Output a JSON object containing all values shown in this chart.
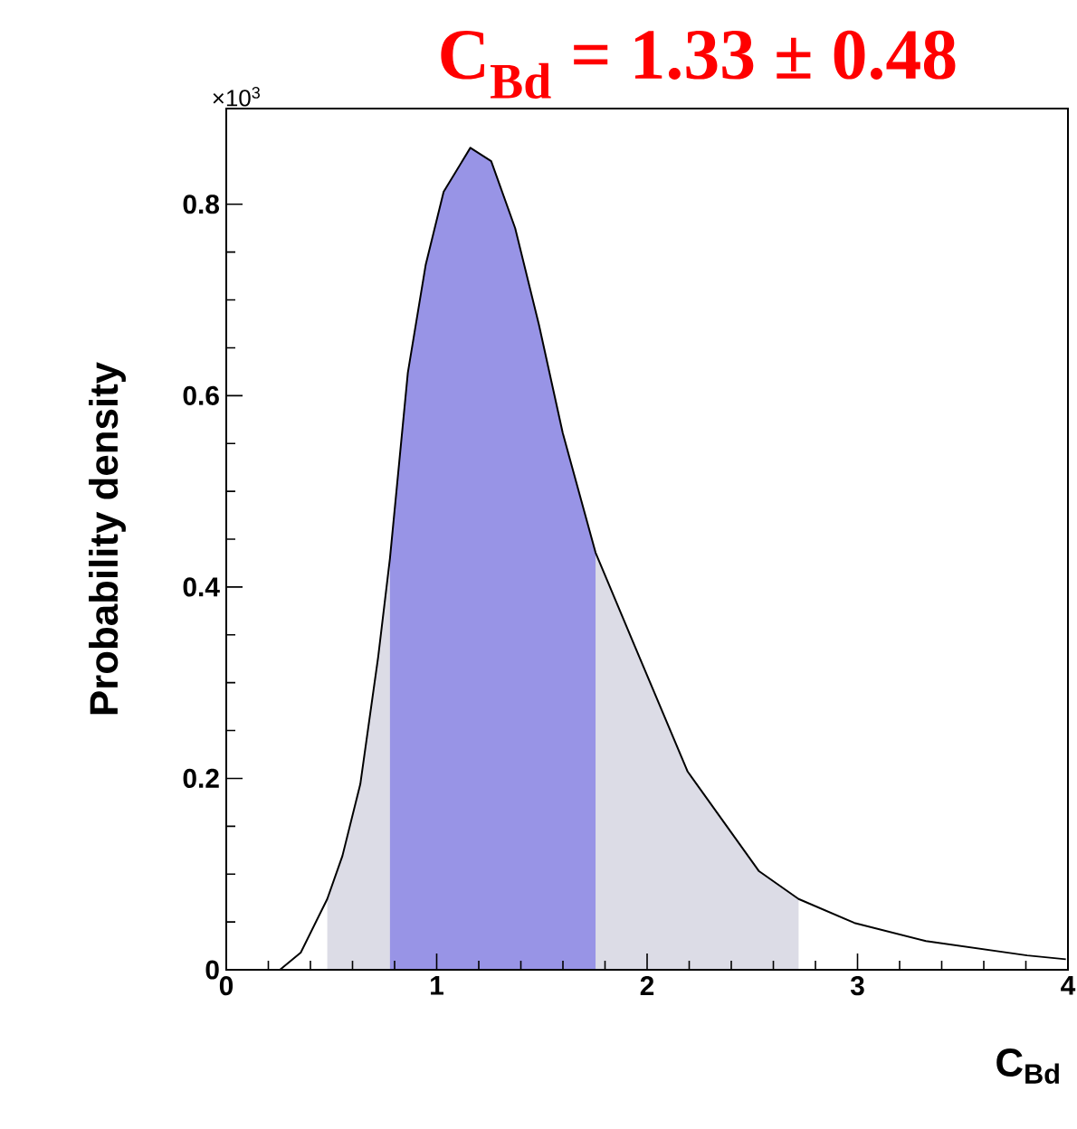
{
  "chart_data": {
    "type": "area",
    "title": "C$_{Bd}$ = 1.33 ± 0.48",
    "xlabel": "C$_{Bd}$",
    "ylabel": "Probability density",
    "annotations": [
      "×10$^{3}$"
    ],
    "xlim": [
      0,
      4
    ],
    "ylim": [
      0,
      0.9
    ],
    "xticks": [
      0,
      1,
      2,
      3,
      4
    ],
    "yticks": [
      0,
      0.2,
      0.4,
      0.6,
      0.8
    ],
    "series": [
      {
        "color": "#dcdce6",
        "x": [
          0.48,
          0.552,
          0.637,
          0.722,
          0.778,
          0.863,
          0.948,
          1.033,
          1.16,
          1.259,
          1.373,
          1.486,
          1.599,
          1.755,
          1.938,
          2.193,
          2.532,
          2.72
        ],
        "values": [
          0.074,
          0.119,
          0.194,
          0.327,
          0.43,
          0.624,
          0.737,
          0.813,
          0.859,
          0.845,
          0.775,
          0.674,
          0.561,
          0.436,
          0.34,
          0.207,
          0.103,
          0.074
        ]
      },
      {
        "color": "#9894e6",
        "x": [
          0.778,
          0.863,
          0.948,
          1.033,
          1.16,
          1.259,
          1.373,
          1.486,
          1.599,
          1.755
        ],
        "values": [
          0.43,
          0.624,
          0.737,
          0.813,
          0.859,
          0.845,
          0.775,
          0.674,
          0.561,
          0.436
        ]
      },
      {
        "type": "line",
        "color": "#000000",
        "x": [
          0.255,
          0.354,
          0.48,
          0.552,
          0.637,
          0.722,
          0.778,
          0.863,
          0.948,
          1.033,
          1.16,
          1.259,
          1.373,
          1.486,
          1.599,
          1.755,
          1.938,
          2.193,
          2.532,
          2.72,
          2.985,
          3.325,
          3.806,
          3.99
        ],
        "values": [
          0,
          0.018,
          0.074,
          0.119,
          0.194,
          0.327,
          0.43,
          0.624,
          0.737,
          0.813,
          0.859,
          0.845,
          0.775,
          0.674,
          0.561,
          0.436,
          0.34,
          0.207,
          0.103,
          0.074,
          0.049,
          0.03,
          0.015,
          0.011
        ]
      }
    ]
  }
}
